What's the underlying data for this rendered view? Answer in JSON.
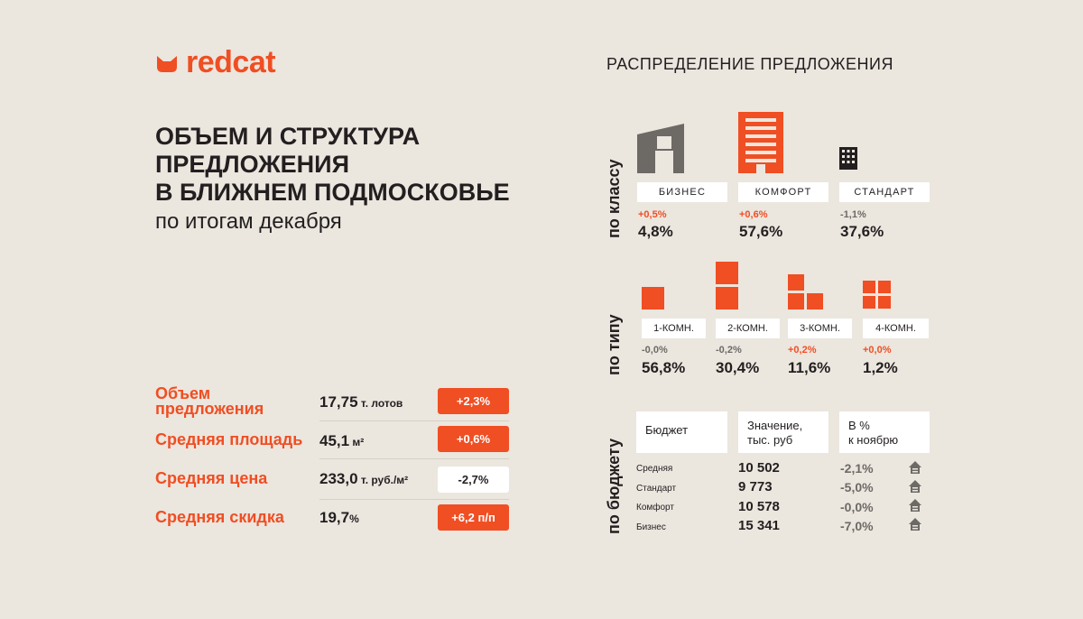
{
  "brand": {
    "name": "redcat",
    "color": "#f04e23"
  },
  "headline": {
    "line1": "ОБЪЕМ И СТРУКТУРА",
    "line2": "ПРЕДЛОЖЕНИЯ",
    "line3": "В БЛИЖНЕМ ПОДМОСКОВЬЕ",
    "subtitle": "по итогам декабря"
  },
  "stats": [
    {
      "label_line1": "Объем",
      "label_line2": "предложения",
      "value": "17,75",
      "unit": " т. лотов",
      "change": "+2,3%"
    },
    {
      "label": "Средняя площадь",
      "value": "45,1",
      "unit": " м²",
      "change": "+0,6%"
    },
    {
      "label": "Средняя цена",
      "value": "233,0",
      "unit": " т. руб./м²",
      "change": "-2,7%"
    },
    {
      "label": "Средняя скидка",
      "value": "19,7",
      "unit": "%",
      "change": "+6,2 п/п"
    }
  ],
  "distribution": {
    "title": "РАСПРЕДЕЛЕНИЕ ПРЕДЛОЖЕНИЯ",
    "by_class": {
      "axis_label": "по классу",
      "items": [
        {
          "name": "БИЗНЕС",
          "change": "+0,5%",
          "share": "4,8%",
          "icon": "business-building-icon"
        },
        {
          "name": "КОМФОРТ",
          "change": "+0,6%",
          "share": "57,6%",
          "icon": "comfort-building-icon"
        },
        {
          "name": "СТАНДАРТ",
          "change": "-1,1%",
          "share": "37,6%",
          "icon": "standard-building-icon"
        }
      ]
    },
    "by_type": {
      "axis_label": "по типу",
      "items": [
        {
          "name": "1-КОМН.",
          "change": "-0,0%",
          "share": "56,8%",
          "rooms": 1
        },
        {
          "name": "2-КОМН.",
          "change": "-0,2%",
          "share": "30,4%",
          "rooms": 2
        },
        {
          "name": "3-КОМН.",
          "change": "+0,2%",
          "share": "11,6%",
          "rooms": 3
        },
        {
          "name": "4-КОМН.",
          "change": "+0,0%",
          "share": "1,2%",
          "rooms": 4
        }
      ]
    },
    "by_budget": {
      "axis_label": "по бюджету",
      "headers": {
        "col1": "Бюджет",
        "col2_line1": "Значение,",
        "col2_line2": "тыс. руб",
        "col3_line1": "В %",
        "col3_line2": "к ноябрю"
      },
      "rows": [
        {
          "label": "Средняя",
          "value": "10 502",
          "change": "-2,1%"
        },
        {
          "label": "Стандарт",
          "value": "9 773",
          "change": "-5,0%"
        },
        {
          "label": "Комфорт",
          "value": "10 578",
          "change": "-0,0%"
        },
        {
          "label": "Бизнес",
          "value": "15 341",
          "change": "-7,0%"
        }
      ]
    }
  }
}
